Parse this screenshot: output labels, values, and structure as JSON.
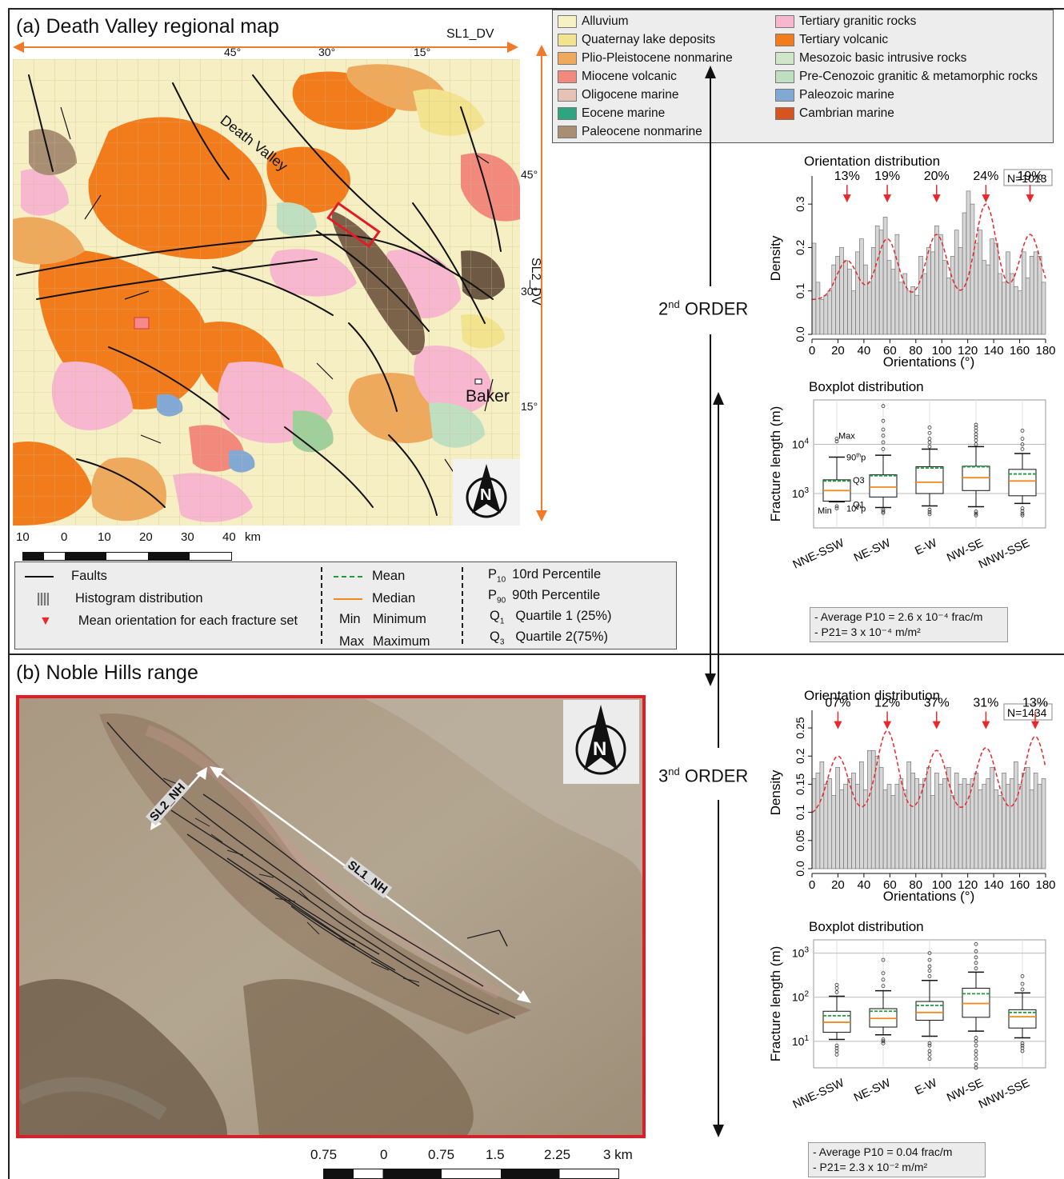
{
  "panel_a": {
    "title": "(a) Death Valley regional map",
    "sl1_label": "SL1_DV",
    "sl2_label": "SL2_DV",
    "top_ticks": [
      "45°",
      "30°",
      "15°"
    ],
    "right_ticks": [
      "45°",
      "30°",
      "15°"
    ],
    "place_labels": {
      "death_valley": "Death Valley",
      "baker": "Baker"
    },
    "north": "N",
    "scale_labels": [
      "10",
      "0",
      "10",
      "20",
      "30",
      "40",
      "km"
    ]
  },
  "geo_legend": {
    "left": [
      {
        "label": "Alluvium",
        "color": "#f7f2c3"
      },
      {
        "label": "Quaternay lake deposits",
        "color": "#f2e38e"
      },
      {
        "label": "Plio-Pleistocene nonmarine",
        "color": "#eea95c"
      },
      {
        "label": "Miocene volcanic",
        "color": "#f2897c"
      },
      {
        "label": "Oligocene marine",
        "color": "#e6c3b5"
      },
      {
        "label": "Eocene marine",
        "color": "#2ea57e"
      },
      {
        "label": "Paleocene nonmarine",
        "color": "#a88f74"
      }
    ],
    "right": [
      {
        "label": "Tertiary granitic rocks",
        "color": "#f7b7cf"
      },
      {
        "label": "Tertiary volcanic",
        "color": "#f27c1c"
      },
      {
        "label": "Mesozoic basic intrusive rocks",
        "color": "#cfe7c8"
      },
      {
        "label": "Pre-Cenozoic granitic & metamorphic rocks",
        "color": "#bfe0c0"
      },
      {
        "label": "Paleozoic marine",
        "color": "#82a9d4"
      },
      {
        "label": "Cambrian marine",
        "color": "#d6541f"
      }
    ]
  },
  "symbol_legend": {
    "faults": "Faults",
    "histogram": "Histogram distribution",
    "mean_orientation": "Mean orientation for each fracture set",
    "mean": "Mean",
    "median": "Median",
    "min_abbr": "Min",
    "min": "Minimum",
    "max_abbr": "Max",
    "max": "Maximum",
    "p10_main": "P",
    "p10_sub": "10",
    "p10": "10rd Percentile",
    "p90_main": "P",
    "p90_sub": "90",
    "p90": "90th Percentile",
    "q1_main": "Q",
    "q1_sub": "1",
    "q1": "Quartile 1 (25%)",
    "q3_main": "Q",
    "q3_sub": "3",
    "q3": "Quartile 2(75%)"
  },
  "orders": {
    "second_num": "2",
    "second_sup": "nd",
    "second_word": "ORDER",
    "third_num": "3",
    "third_sup": "nd",
    "third_word": "ORDER"
  },
  "panel_b": {
    "title": "(b) Noble Hills range",
    "sl1_label": "SL1_NH",
    "sl2_label": "SL2_NH",
    "north": "N",
    "scale_labels": [
      "0.75",
      "0",
      "0.75",
      "1.5",
      "2.25",
      "3 km"
    ]
  },
  "notes": {
    "a_p10": "- Average P10 = 2.6 x 10⁻⁴ frac/m",
    "a_p21": "- P21= 3 x 10⁻⁴ m/m²",
    "b_p10": "- Average P10 = 0.04 frac/m",
    "b_p21": "- P21= 2.3 x 10⁻² m/m²"
  },
  "colors": {
    "mean": "#1a9e3a",
    "median": "#f08a1c",
    "arrow": "#e8282a",
    "frame_red": "#e21c24",
    "sl_arrow": "#f07a2a"
  },
  "chart_data": [
    {
      "type": "bar",
      "title": "Orientation distribution",
      "n_label": "N=1013",
      "xlabel": "Orientations (°)",
      "ylabel": "Density",
      "xlim": [
        0,
        180
      ],
      "ylim": [
        0,
        0.35
      ],
      "xticks": [
        0,
        20,
        40,
        60,
        80,
        100,
        120,
        140,
        160,
        180
      ],
      "yticks": [
        "0.0",
        "0.1",
        "0.2",
        "0.3"
      ],
      "ytick_values": [
        0,
        0.1,
        0.2,
        0.3
      ],
      "values": [
        0.21,
        0.12,
        0.08,
        0.09,
        0.1,
        0.16,
        0.18,
        0.2,
        0.17,
        0.15,
        0.1,
        0.19,
        0.22,
        0.16,
        0.12,
        0.2,
        0.25,
        0.24,
        0.27,
        0.17,
        0.15,
        0.23,
        0.12,
        0.14,
        0.1,
        0.11,
        0.09,
        0.18,
        0.14,
        0.2,
        0.19,
        0.25,
        0.23,
        0.17,
        0.13,
        0.18,
        0.24,
        0.2,
        0.28,
        0.33,
        0.3,
        0.21,
        0.24,
        0.17,
        0.16,
        0.22,
        0.21,
        0.14,
        0.12,
        0.19,
        0.14,
        0.11,
        0.1,
        0.19,
        0.13,
        0.18,
        0.19,
        0.18,
        0.12
      ],
      "mean_sets": [
        {
          "label": "13%",
          "orientation": 27
        },
        {
          "label": "19%",
          "orientation": 58
        },
        {
          "label": "20%",
          "orientation": 96
        },
        {
          "label": "24%",
          "orientation": 134
        },
        {
          "label": "19%",
          "orientation": 168
        }
      ],
      "fit_curve": {
        "centers": [
          27,
          58,
          96,
          134,
          168
        ],
        "peaks": [
          0.17,
          0.22,
          0.23,
          0.3,
          0.23
        ],
        "base": 0.08
      }
    },
    {
      "type": "box",
      "title": "Boxplot distribution",
      "ylabel": "Fracture length (m)",
      "scale": "log",
      "ylim": [
        200,
        80000
      ],
      "yticks": [
        {
          "base": "10",
          "exp": "3",
          "value": 1000
        },
        {
          "base": "10",
          "exp": "4",
          "value": 10000
        }
      ],
      "categories": [
        "NNE-SSW",
        "NE-SW",
        "E-W",
        "NW-SE",
        "NNW-SSE"
      ],
      "annotations": {
        "max": "Max",
        "p90": "90",
        "p90_suffix": "th",
        "p90_tail": "p",
        "q3": "Q3",
        "q1": "Q1",
        "p10": "10",
        "p10_suffix": "th",
        "p10_tail": "p",
        "min": "Min"
      },
      "boxes": [
        {
          "p10": 680,
          "q1": 700,
          "median": 1150,
          "mean": 1800,
          "q3": 1900,
          "p90": 5500,
          "min": 460,
          "max": 12000,
          "outliers": [
            500,
            550,
            13000,
            11500
          ]
        },
        {
          "p10": 520,
          "q1": 850,
          "median": 1350,
          "mean": 2300,
          "q3": 2400,
          "p90": 6000,
          "min": 380,
          "max": 30000,
          "outliers": [
            400,
            430,
            470,
            8000,
            11000,
            15000,
            20000,
            30000,
            60000
          ]
        },
        {
          "p10": 560,
          "q1": 1000,
          "median": 1700,
          "mean": 3300,
          "q3": 3500,
          "p90": 8000,
          "min": 360,
          "max": 22000,
          "outliers": [
            380,
            420,
            470,
            9000,
            11000,
            13000,
            17000,
            22000
          ]
        },
        {
          "p10": 540,
          "q1": 1150,
          "median": 2100,
          "mean": 3500,
          "q3": 3600,
          "p90": 9000,
          "min": 340,
          "max": 25000,
          "outliers": [
            360,
            390,
            430,
            10000,
            12000,
            14000,
            16000,
            19000,
            22000,
            25000
          ]
        },
        {
          "p10": 630,
          "q1": 900,
          "median": 1800,
          "mean": 2500,
          "q3": 3100,
          "p90": 6500,
          "min": 340,
          "max": 19000,
          "outliers": [
            360,
            390,
            440,
            500,
            8000,
            10000,
            13000,
            19000
          ]
        }
      ]
    },
    {
      "type": "bar",
      "title": "Orientation distribution",
      "n_label": "N=1434",
      "xlabel": "Orientations (°)",
      "ylabel": "Density",
      "xlim": [
        0,
        180
      ],
      "ylim": [
        0,
        0.27
      ],
      "xticks": [
        0,
        20,
        40,
        60,
        80,
        100,
        120,
        140,
        160,
        180
      ],
      "yticks": [
        "0.0",
        "0.05",
        "0.1",
        "0.15",
        "0.2",
        "0.25"
      ],
      "ytick_values": [
        0,
        0.05,
        0.1,
        0.15,
        0.2,
        0.25
      ],
      "values": [
        0.16,
        0.17,
        0.19,
        0.15,
        0.16,
        0.13,
        0.18,
        0.14,
        0.15,
        0.16,
        0.17,
        0.15,
        0.19,
        0.14,
        0.21,
        0.21,
        0.2,
        0.18,
        0.14,
        0.15,
        0.13,
        0.15,
        0.16,
        0.14,
        0.19,
        0.17,
        0.16,
        0.15,
        0.16,
        0.18,
        0.13,
        0.17,
        0.15,
        0.16,
        0.18,
        0.13,
        0.17,
        0.15,
        0.16,
        0.15,
        0.16,
        0.17,
        0.14,
        0.15,
        0.16,
        0.18,
        0.14,
        0.13,
        0.17,
        0.15,
        0.16,
        0.19,
        0.15,
        0.17,
        0.18,
        0.14,
        0.17,
        0.15,
        0.16
      ],
      "mean_sets": [
        {
          "label": "07%",
          "orientation": 20
        },
        {
          "label": "12%",
          "orientation": 58
        },
        {
          "label": "37%",
          "orientation": 96
        },
        {
          "label": "31%",
          "orientation": 134
        },
        {
          "label": "13%",
          "orientation": 172
        }
      ],
      "fit_curve": {
        "centers": [
          20,
          58,
          96,
          134,
          172
        ],
        "peaks": [
          0.2,
          0.245,
          0.21,
          0.215,
          0.235
        ],
        "base": 0.095
      }
    },
    {
      "type": "box",
      "title": "Boxplot distribution",
      "ylabel": "Fracture length (m)",
      "scale": "log",
      "ylim": [
        2.5,
        2000
      ],
      "yticks": [
        {
          "base": "10",
          "exp": "1",
          "value": 10
        },
        {
          "base": "10",
          "exp": "2",
          "value": 100
        },
        {
          "base": "10",
          "exp": "3",
          "value": 1000
        }
      ],
      "categories": [
        "NNE-SSW",
        "NE-SW",
        "E-W",
        "NW-SE",
        "NNW-SSE"
      ],
      "boxes": [
        {
          "p10": 11,
          "q1": 16,
          "median": 27,
          "mean": 38,
          "q3": 48,
          "p90": 105,
          "min": 6,
          "max": 190,
          "outliers": [
            5,
            6,
            7,
            8,
            130,
            160,
            190
          ]
        },
        {
          "p10": 14,
          "q1": 21,
          "median": 33,
          "mean": 48,
          "q3": 55,
          "p90": 140,
          "min": 8,
          "max": 700,
          "outliers": [
            9,
            10,
            11,
            180,
            250,
            350,
            700
          ]
        },
        {
          "p10": 13,
          "q1": 30,
          "median": 45,
          "mean": 65,
          "q3": 80,
          "p90": 240,
          "min": 4,
          "max": 1000,
          "outliers": [
            4,
            5,
            6,
            8,
            9,
            300,
            400,
            500,
            700,
            1000
          ]
        },
        {
          "p10": 17,
          "q1": 35,
          "median": 72,
          "mean": 120,
          "q3": 160,
          "p90": 370,
          "min": 2.5,
          "max": 1600,
          "outliers": [
            2.5,
            3,
            4,
            5,
            6,
            8,
            10,
            12,
            450,
            600,
            800,
            1100,
            1600
          ]
        },
        {
          "p10": 12,
          "q1": 20,
          "median": 36,
          "mean": 45,
          "q3": 52,
          "p90": 125,
          "min": 6,
          "max": 300,
          "outliers": [
            6,
            7,
            8,
            9,
            150,
            200,
            300
          ]
        }
      ]
    }
  ]
}
